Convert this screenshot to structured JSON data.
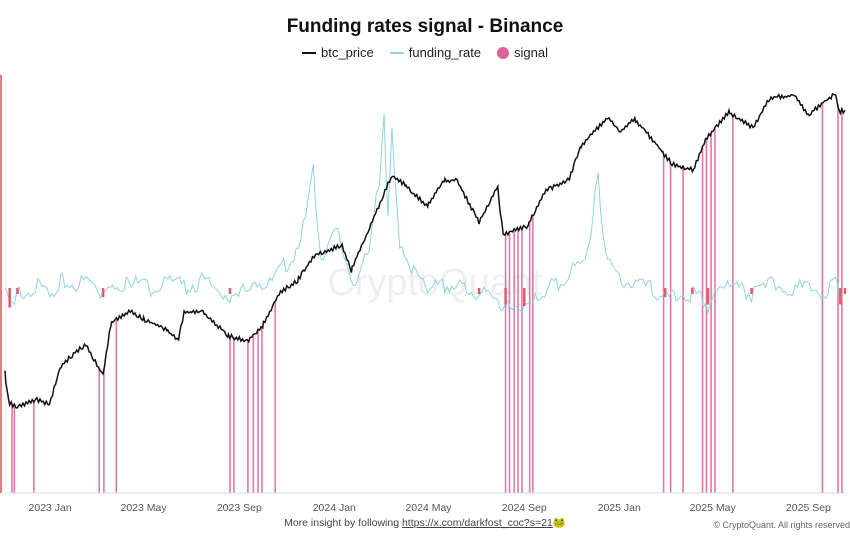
{
  "chart_data": {
    "type": "line",
    "title": "Funding rates signal - Binance",
    "legend": [
      {
        "name": "btc_price",
        "color": "#111111"
      },
      {
        "name": "funding_rate",
        "color": "#8fd3e3"
      },
      {
        "name": "signal",
        "color": "#e0609a"
      }
    ],
    "legend_position": "top-center",
    "x_ticks": [
      "2023 Jan",
      "2023 May",
      "2023 Sep",
      "2024 Jan",
      "2024 May",
      "2024 Sep",
      "2025 Jan",
      "2025 May",
      "2025 Sep"
    ],
    "x_tick_dates": [
      "2023-01-01",
      "2023-05-01",
      "2023-09-01",
      "2024-01-01",
      "2024-05-01",
      "2024-09-01",
      "2025-01-01",
      "2025-05-01",
      "2025-09-01"
    ],
    "xlim": [
      "2022-11-04",
      "2025-10-18"
    ],
    "btc_scale": "log",
    "btc_price": [
      [
        "2022-11-04",
        20500
      ],
      [
        "2022-11-09",
        16800
      ],
      [
        "2022-11-20",
        16300
      ],
      [
        "2022-12-15",
        17100
      ],
      [
        "2022-12-31",
        16600
      ],
      [
        "2023-01-14",
        21000
      ],
      [
        "2023-01-31",
        23000
      ],
      [
        "2023-02-16",
        24500
      ],
      [
        "2023-03-10",
        20000
      ],
      [
        "2023-03-20",
        28000
      ],
      [
        "2023-04-14",
        30500
      ],
      [
        "2023-04-30",
        29000
      ],
      [
        "2023-05-31",
        27000
      ],
      [
        "2023-06-15",
        25000
      ],
      [
        "2023-06-22",
        30000
      ],
      [
        "2023-07-14",
        30500
      ],
      [
        "2023-08-17",
        26000
      ],
      [
        "2023-09-11",
        25000
      ],
      [
        "2023-10-01",
        27500
      ],
      [
        "2023-10-24",
        34500
      ],
      [
        "2023-11-15",
        37000
      ],
      [
        "2023-12-08",
        44000
      ],
      [
        "2024-01-11",
        46500
      ],
      [
        "2024-01-23",
        39500
      ],
      [
        "2024-02-15",
        52000
      ],
      [
        "2024-03-14",
        73000
      ],
      [
        "2024-04-01",
        69000
      ],
      [
        "2024-04-30",
        60000
      ],
      [
        "2024-05-21",
        71000
      ],
      [
        "2024-06-07",
        71000
      ],
      [
        "2024-07-05",
        54000
      ],
      [
        "2024-07-29",
        69000
      ],
      [
        "2024-08-05",
        50000
      ],
      [
        "2024-09-06",
        53000
      ],
      [
        "2024-09-27",
        66000
      ],
      [
        "2024-10-29",
        72000
      ],
      [
        "2024-11-12",
        88000
      ],
      [
        "2024-12-05",
        100000
      ],
      [
        "2024-12-17",
        107000
      ],
      [
        "2025-01-02",
        97000
      ],
      [
        "2025-01-21",
        106000
      ],
      [
        "2025-02-03",
        98000
      ],
      [
        "2025-02-25",
        86000
      ],
      [
        "2025-03-10",
        79000
      ],
      [
        "2025-04-07",
        76000
      ],
      [
        "2025-04-22",
        93000
      ],
      [
        "2025-05-22",
        111000
      ],
      [
        "2025-06-22",
        100000
      ],
      [
        "2025-07-14",
        122000
      ],
      [
        "2025-08-14",
        123000
      ],
      [
        "2025-09-01",
        108000
      ],
      [
        "2025-09-18",
        117000
      ],
      [
        "2025-10-06",
        125000
      ],
      [
        "2025-10-11",
        111000
      ],
      [
        "2025-10-18",
        112000
      ]
    ],
    "funding_rate": [
      [
        "2022-11-04",
        0.008
      ],
      [
        "2022-11-10",
        -0.005
      ],
      [
        "2022-11-20",
        0.004
      ],
      [
        "2022-12-10",
        0.009
      ],
      [
        "2023-01-01",
        0.006
      ],
      [
        "2023-01-15",
        0.012
      ],
      [
        "2023-02-01",
        0.01
      ],
      [
        "2023-02-20",
        0.013
      ],
      [
        "2023-03-10",
        0.002
      ],
      [
        "2023-03-25",
        0.011
      ],
      [
        "2023-04-15",
        0.012
      ],
      [
        "2023-05-10",
        0.008
      ],
      [
        "2023-06-01",
        0.011
      ],
      [
        "2023-06-25",
        0.009
      ],
      [
        "2023-07-15",
        0.012
      ],
      [
        "2023-08-20",
        0.004
      ],
      [
        "2023-09-15",
        0.006
      ],
      [
        "2023-10-10",
        0.01
      ],
      [
        "2023-10-25",
        0.02
      ],
      [
        "2023-11-10",
        0.03
      ],
      [
        "2023-11-25",
        0.055
      ],
      [
        "2023-12-05",
        0.087
      ],
      [
        "2023-12-15",
        0.03
      ],
      [
        "2024-01-05",
        0.045
      ],
      [
        "2024-01-25",
        0.012
      ],
      [
        "2024-02-15",
        0.03
      ],
      [
        "2024-02-28",
        0.08
      ],
      [
        "2024-03-05",
        0.127
      ],
      [
        "2024-03-10",
        0.06
      ],
      [
        "2024-03-15",
        0.11
      ],
      [
        "2024-03-25",
        0.04
      ],
      [
        "2024-04-15",
        0.015
      ],
      [
        "2024-05-10",
        0.008
      ],
      [
        "2024-06-10",
        0.01
      ],
      [
        "2024-07-05",
        0.004
      ],
      [
        "2024-08-08",
        -0.003
      ],
      [
        "2024-09-01",
        -0.004
      ],
      [
        "2024-09-15",
        0.005
      ],
      [
        "2024-10-15",
        0.01
      ],
      [
        "2024-11-12",
        0.025
      ],
      [
        "2024-11-25",
        0.04
      ],
      [
        "2024-12-05",
        0.083
      ],
      [
        "2024-12-15",
        0.025
      ],
      [
        "2025-01-10",
        0.012
      ],
      [
        "2025-02-01",
        0.01
      ],
      [
        "2025-03-01",
        0.002
      ],
      [
        "2025-04-05",
        0.004
      ],
      [
        "2025-04-25",
        -0.003
      ],
      [
        "2025-05-20",
        0.008
      ],
      [
        "2025-06-20",
        0.004
      ],
      [
        "2025-07-15",
        0.01
      ],
      [
        "2025-08-15",
        0.008
      ],
      [
        "2025-09-20",
        0.006
      ],
      [
        "2025-10-06",
        0.011
      ],
      [
        "2025-10-12",
        -0.003
      ],
      [
        "2025-10-18",
        0.004
      ]
    ],
    "signal_dates": [
      "2022-11-13",
      "2022-11-16",
      "2022-12-11",
      "2023-03-05",
      "2023-03-11",
      "2023-03-27",
      "2023-08-20",
      "2023-08-25",
      "2023-09-12",
      "2023-09-19",
      "2023-09-25",
      "2023-09-30",
      "2023-10-17",
      "2024-08-08",
      "2024-08-13",
      "2024-08-19",
      "2024-08-24",
      "2024-08-29",
      "2024-09-08",
      "2024-09-12",
      "2025-02-27",
      "2025-03-08",
      "2025-03-24",
      "2025-04-18",
      "2025-04-23",
      "2025-04-29",
      "2025-05-04",
      "2025-05-27",
      "2025-09-19",
      "2025-10-09",
      "2025-10-14"
    ]
  },
  "watermark": "CryptoQuant",
  "footer": {
    "text": "More insight by following ",
    "link": "https://x.com/darkfost_coc?s=21",
    "emoji": "🐸"
  },
  "copyright": "© CryptoQuant. All rights reserved"
}
